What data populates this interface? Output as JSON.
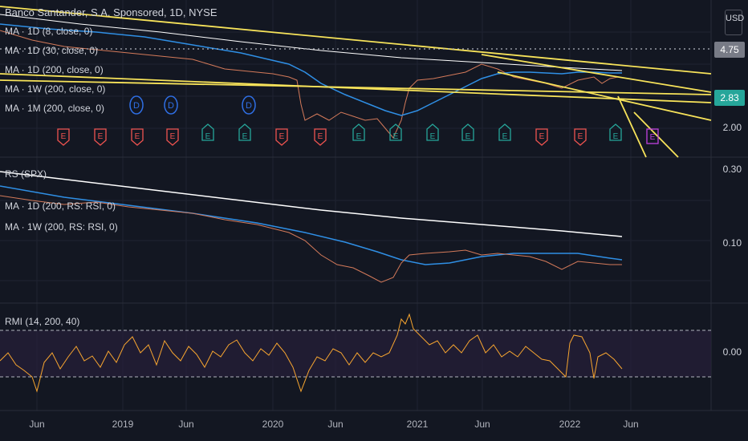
{
  "header": {
    "symbol_title": "Banco Santander, S.A. Sponsored, 1D, NYSE",
    "currency_button": "USD"
  },
  "price_pane": {
    "legend": [
      "MA · 1D (8, close, 0)",
      "MA · 1D (30, close, 0)",
      "MA · 1D (200, close, 0)",
      "MA · 1W (200, close, 0)",
      "MA · 1M (200, close, 0)"
    ],
    "axis_labels": [
      "2.00"
    ],
    "badges": [
      {
        "value": "4.75",
        "bg": "#787b86",
        "fg": "#ffffff"
      },
      {
        "value": "2.83",
        "bg": "#26a69a",
        "fg": "#ffffff"
      }
    ],
    "dividend_marker_label": "D",
    "earnings_marker_label": "E"
  },
  "rs_pane": {
    "legend": [
      "RS (SPX)",
      "MA · 1D (200, RS: RSI, 0)",
      "MA · 1W (200, RS: RSI, 0)"
    ],
    "axis_labels": [
      "0.30",
      "0.10"
    ]
  },
  "rmi_pane": {
    "legend": "RMI (14, 200, 40)",
    "axis_labels": [
      "0.00"
    ]
  },
  "time_axis": [
    "Jun",
    "2019",
    "Jun",
    "2020",
    "Jun",
    "2021",
    "Jun",
    "2022",
    "Jun"
  ],
  "colors": {
    "background": "#131722",
    "trendline": "#f7e35a",
    "ma200": "#2f8fe5",
    "ma1w": "#ffffff",
    "rmi": "#f7a530",
    "candle_up": "#26a69a",
    "candle_down": "#ef5350"
  }
}
